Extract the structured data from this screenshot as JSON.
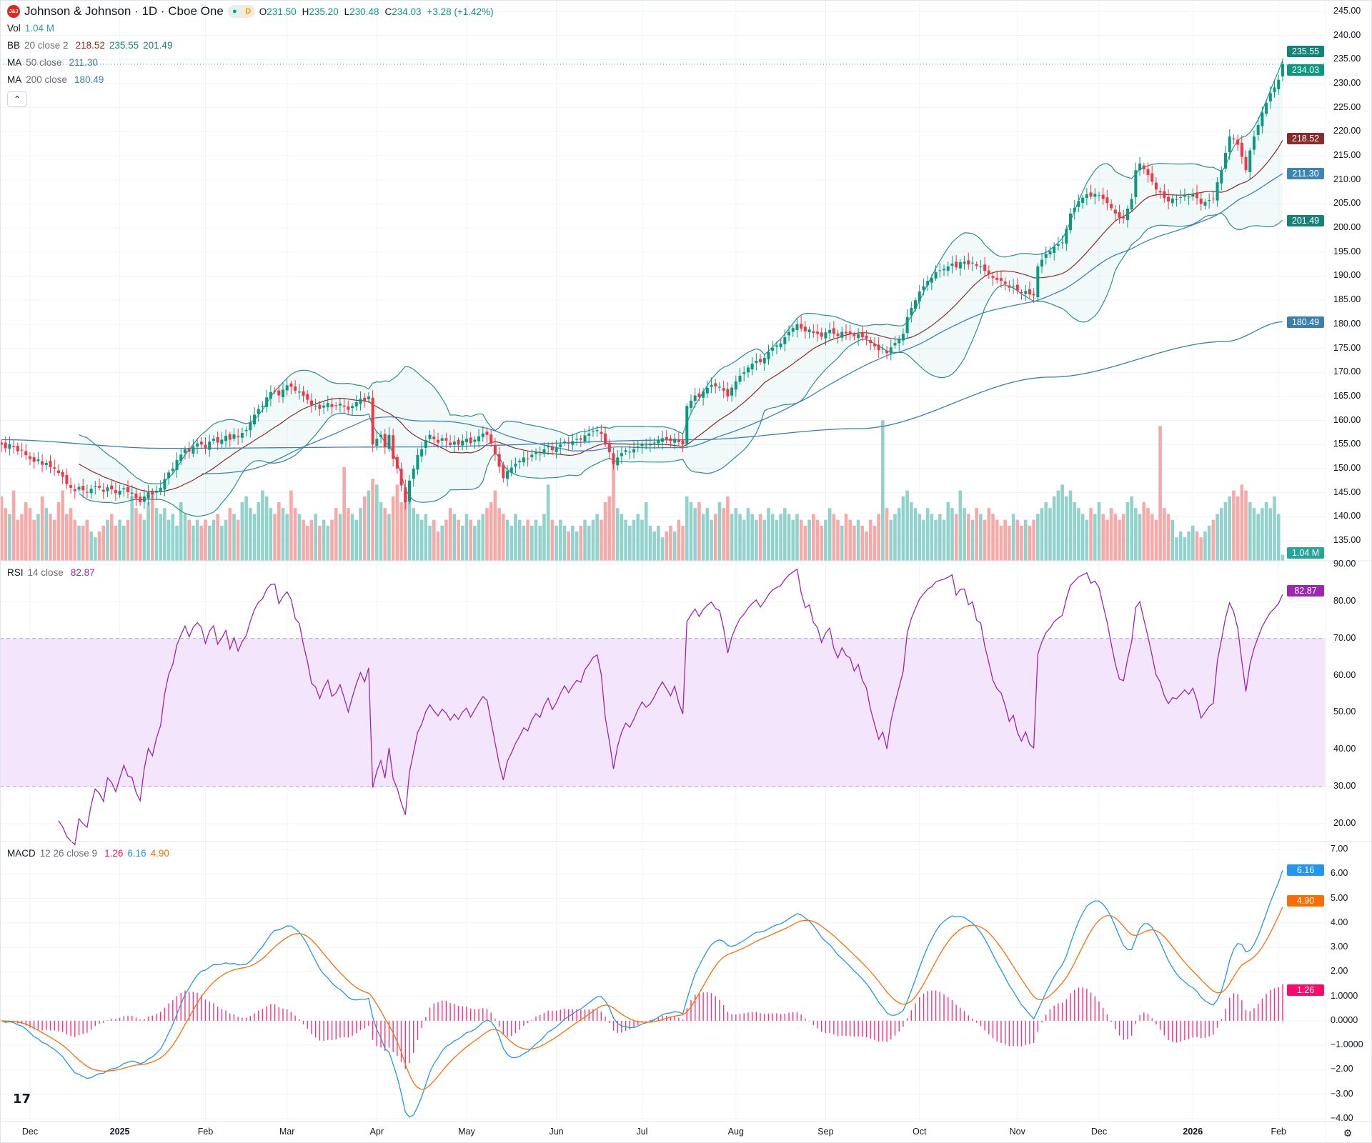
{
  "header": {
    "logo_text": "J&J",
    "title": "Johnson & Johnson · 1D · Cboe One",
    "market_status_icon": "green-dot-icon",
    "delay_badge": "D",
    "open_label": "O",
    "open": "231.50",
    "high_label": "H",
    "high": "235.20",
    "low_label": "L",
    "low": "230.48",
    "close_label": "C",
    "close": "234.03",
    "change": "+3.28 (+1.42%)"
  },
  "indicators": {
    "vol": {
      "name": "Vol",
      "value": "1.04 M"
    },
    "bb": {
      "name": "BB",
      "params": "20 close 2",
      "basis": "218.52",
      "upper": "235.55",
      "lower": "201.49"
    },
    "ma50": {
      "name": "MA",
      "params": "50 close",
      "value": "211.30"
    },
    "ma200": {
      "name": "MA",
      "params": "200 close",
      "value": "180.49"
    },
    "rsi": {
      "name": "RSI",
      "params": "14 close",
      "value": "82.87"
    },
    "macd": {
      "name": "MACD",
      "params": "12 26 close 9",
      "hist": "1.26",
      "macd": "6.16",
      "signal": "4.90"
    }
  },
  "collapse_icon": "chevron-up-icon",
  "colors": {
    "up": "#089981",
    "down": "#f23645",
    "bb": "#2a8f8a",
    "bb_basis": "#8b2a2a",
    "ma50": "#3c84b3",
    "ma200": "#3a7fb1",
    "rsi": "#9c27b0",
    "macd": "#2196f3",
    "signal": "#ff6d00",
    "hist": "#ff0a6c"
  },
  "price_tags": [
    {
      "text": "235.55",
      "value": 235.55,
      "color": "#138277"
    },
    {
      "text": "234.03",
      "value": 234.03,
      "color": "#089981"
    },
    {
      "text": "218.52",
      "value": 218.52,
      "color": "#8b2a2a"
    },
    {
      "text": "211.30",
      "value": 211.3,
      "color": "#3c84b3"
    },
    {
      "text": "201.49",
      "value": 201.49,
      "color": "#138277"
    },
    {
      "text": "180.49",
      "value": 180.49,
      "color": "#3a7fb1"
    }
  ],
  "volume_tag": {
    "text": "1.04 M",
    "color": "#26a69a"
  },
  "rsi_tag": {
    "text": "82.87",
    "value": 82.87,
    "color": "#9c27b0"
  },
  "macd_tags": [
    {
      "text": "6.16",
      "value": 6.16,
      "color": "#2196f3"
    },
    {
      "text": "4.90",
      "value": 4.9,
      "color": "#ff6d00"
    },
    {
      "text": "1.26",
      "value": 1.26,
      "color": "#ff0a6c"
    }
  ],
  "chart_data": {
    "type": "candlestick",
    "symbol": "Johnson & Johnson",
    "interval": "1D",
    "price_ticks": [
      "245.00",
      "240.00",
      "235.00",
      "230.00",
      "225.00",
      "220.00",
      "215.00",
      "210.00",
      "205.00",
      "200.00",
      "195.00",
      "190.00",
      "185.00",
      "180.00",
      "175.00",
      "170.00",
      "165.00",
      "160.00",
      "155.00",
      "150.00",
      "145.00",
      "140.00",
      "135.00"
    ],
    "ylim": [
      135,
      245
    ],
    "rsi_ticks": [
      "90.00",
      "80.00",
      "70.00",
      "60.00",
      "50.00",
      "40.00",
      "30.00",
      "20.00"
    ],
    "rsi_bands": [
      30,
      70
    ],
    "macd_ticks": [
      "7.00",
      "6.00",
      "5.00",
      "4.00",
      "3.00",
      "2.00",
      "1.0000",
      "0.0000",
      "−1.0000",
      "−2.00",
      "−3.00",
      "−4.00"
    ],
    "x_labels": [
      "Dec",
      "2025",
      "Feb",
      "Mar",
      "Apr",
      "May",
      "Jun",
      "Jul",
      "Aug",
      "Sep",
      "Oct",
      "Nov",
      "Dec",
      "2026",
      "Feb"
    ],
    "last": {
      "open": 231.5,
      "high": 235.2,
      "low": 230.48,
      "close": 234.03
    },
    "closes": [
      155,
      154.2,
      155.1,
      154.5,
      153.6,
      153.9,
      152.8,
      152,
      151.4,
      151.9,
      150.8,
      151.2,
      150.3,
      150,
      149.1,
      148.3,
      146.8,
      146,
      145.3,
      146.2,
      145.5,
      145,
      145.8,
      146.4,
      146,
      145.2,
      146.1,
      145.7,
      144.9,
      145.4,
      145.9,
      145.1,
      145,
      143.8,
      143,
      144.2,
      145.1,
      144.6,
      145.4,
      146,
      147.8,
      149.2,
      150,
      151.8,
      152.9,
      154,
      153.5,
      154.6,
      155.2,
      155,
      154.3,
      155.6,
      156.2,
      155.4,
      156,
      156.8,
      156,
      157.1,
      156.5,
      157.4,
      158,
      159.6,
      161.2,
      162.4,
      163,
      164.8,
      165.9,
      166,
      165.2,
      166.4,
      167.3,
      167,
      166.2,
      166,
      165.1,
      164.3,
      163.2,
      163,
      162.4,
      163.1,
      163.6,
      162.8,
      163,
      163.5,
      162.9,
      162.2,
      163,
      163.8,
      164.5,
      164.1,
      165,
      155,
      156.2,
      157,
      154.5,
      157,
      152,
      150,
      146.5,
      143,
      147.5,
      150,
      152.8,
      154,
      155.9,
      157,
      156.1,
      155.4,
      156.3,
      155.8,
      154.9,
      155.6,
      155,
      155.8,
      156.2,
      155.3,
      156,
      156.7,
      157.3,
      157,
      155.2,
      153,
      150.4,
      148,
      149.5,
      150.2,
      151,
      151.6,
      152.3,
      152,
      152.9,
      153.4,
      153.1,
      154,
      154.6,
      153.8,
      154.3,
      155,
      155.6,
      155.2,
      155.7,
      156.1,
      156,
      156.9,
      157.3,
      157.8,
      158,
      157.2,
      155,
      153.4,
      151,
      152.3,
      153.2,
      153.8,
      153.5,
      154,
      154.6,
      155.1,
      154.8,
      155,
      155.4,
      155.9,
      156.3,
      156,
      155.7,
      156.2,
      155.5,
      155,
      163,
      164.1,
      165.2,
      164.8,
      166,
      166.8,
      167.4,
      167.1,
      167,
      166.2,
      165,
      166.8,
      168.1,
      169.3,
      170,
      171,
      171.8,
      172.4,
      172.1,
      173,
      174.2,
      175.1,
      175.6,
      176,
      177.3,
      178.4,
      179.2,
      180,
      179.1,
      178.5,
      178.9,
      178.2,
      178,
      177.4,
      178.3,
      178.8,
      178,
      177.6,
      178.4,
      178.1,
      178,
      177.5,
      177.9,
      177.3,
      177,
      176.1,
      175.4,
      174.6,
      174.9,
      174,
      175.2,
      176.1,
      177,
      178,
      181.5,
      183.4,
      185,
      186.8,
      187.9,
      189,
      189.6,
      190.8,
      191.2,
      191.5,
      192,
      192.6,
      191.8,
      192.9,
      193,
      192.4,
      192.8,
      192.1,
      192,
      191.1,
      190.4,
      189.6,
      189.2,
      189,
      188.4,
      187.6,
      187.9,
      187,
      186.5,
      186.9,
      186.2,
      186,
      192,
      193.4,
      194.6,
      195.2,
      196.1,
      196.6,
      197,
      199.8,
      203,
      204.2,
      205.6,
      206.3,
      207,
      206.5,
      207.1,
      206.8,
      206,
      205.2,
      204.1,
      203,
      202.1,
      202,
      204,
      206,
      212,
      213.4,
      212.2,
      211,
      209.6,
      208,
      207.4,
      206.2,
      205.5,
      206.1,
      206,
      206.4,
      206.8,
      206.5,
      207,
      206.2,
      205,
      205.4,
      205.8,
      206,
      209.5,
      212,
      215.6,
      219,
      218.4,
      217.3,
      214.8,
      212,
      216.1,
      219,
      221.4,
      224,
      226,
      228,
      229.2,
      230.8,
      234.03
    ],
    "volumes_millions": [
      11,
      9,
      8,
      12,
      7,
      8,
      10,
      9,
      7,
      8,
      11,
      9,
      8,
      7,
      10,
      12,
      8,
      9,
      7,
      6,
      6,
      7,
      5,
      4,
      5,
      6,
      7,
      8,
      6,
      7,
      6,
      7,
      11,
      9,
      8,
      7,
      10,
      12,
      9,
      8,
      9,
      7,
      8,
      6,
      10,
      8,
      7,
      6,
      7,
      6,
      7,
      6,
      7,
      8,
      6,
      7,
      9,
      8,
      7,
      10,
      11,
      9,
      8,
      10,
      12,
      11,
      9,
      8,
      10,
      9,
      8,
      12,
      9,
      8,
      7,
      6,
      7,
      8,
      6,
      7,
      6,
      7,
      9,
      8,
      16,
      9,
      8,
      7,
      9,
      11,
      12,
      14,
      13,
      10,
      9,
      8,
      11,
      13,
      10,
      12,
      11,
      9,
      8,
      7,
      8,
      6,
      7,
      5,
      6,
      7,
      9,
      8,
      7,
      6,
      8,
      7,
      6,
      7,
      8,
      9,
      10,
      12,
      9,
      8,
      7,
      6,
      8,
      7,
      6,
      7,
      6,
      7,
      6,
      8,
      13,
      7,
      6,
      7,
      6,
      5,
      6,
      5,
      6,
      7,
      6,
      7,
      8,
      7,
      10,
      11,
      17,
      9,
      8,
      7,
      6,
      7,
      8,
      7,
      10,
      6,
      5,
      6,
      4,
      5,
      6,
      5,
      7,
      6,
      11,
      10,
      9,
      10,
      8,
      9,
      7,
      8,
      10,
      9,
      11,
      8,
      9,
      8,
      7,
      9,
      8,
      7,
      8,
      7,
      9,
      8,
      7,
      8,
      9,
      8,
      7,
      8,
      7,
      6,
      7,
      8,
      7,
      6,
      7,
      9,
      8,
      7,
      6,
      8,
      7,
      6,
      7,
      6,
      5,
      7,
      6,
      8,
      24,
      9,
      7,
      8,
      9,
      11,
      12,
      10,
      9,
      8,
      7,
      9,
      8,
      7,
      8,
      7,
      10,
      9,
      8,
      12,
      9,
      8,
      7,
      9,
      8,
      7,
      9,
      8,
      7,
      6,
      7,
      6,
      8,
      7,
      6,
      7,
      6,
      7,
      8,
      9,
      10,
      9,
      11,
      12,
      13,
      11,
      12,
      10,
      9,
      8,
      7,
      9,
      8,
      10,
      8,
      7,
      9,
      8,
      7,
      8,
      10,
      11,
      9,
      8,
      10,
      9,
      8,
      7,
      23,
      9,
      8,
      7,
      4,
      5,
      4,
      5,
      6,
      5,
      4,
      5,
      6,
      7,
      8,
      9,
      10,
      11,
      12,
      11,
      13,
      12,
      10,
      9,
      8,
      9,
      10,
      9,
      11,
      8,
      1.04
    ],
    "ma200_points": [
      [
        0,
        156
      ],
      [
        40,
        154.2
      ],
      [
        100,
        154.5
      ],
      [
        170,
        156
      ],
      [
        210,
        158.3
      ],
      [
        257,
        169
      ],
      [
        300,
        176.4
      ],
      [
        314,
        180.49
      ]
    ]
  }
}
